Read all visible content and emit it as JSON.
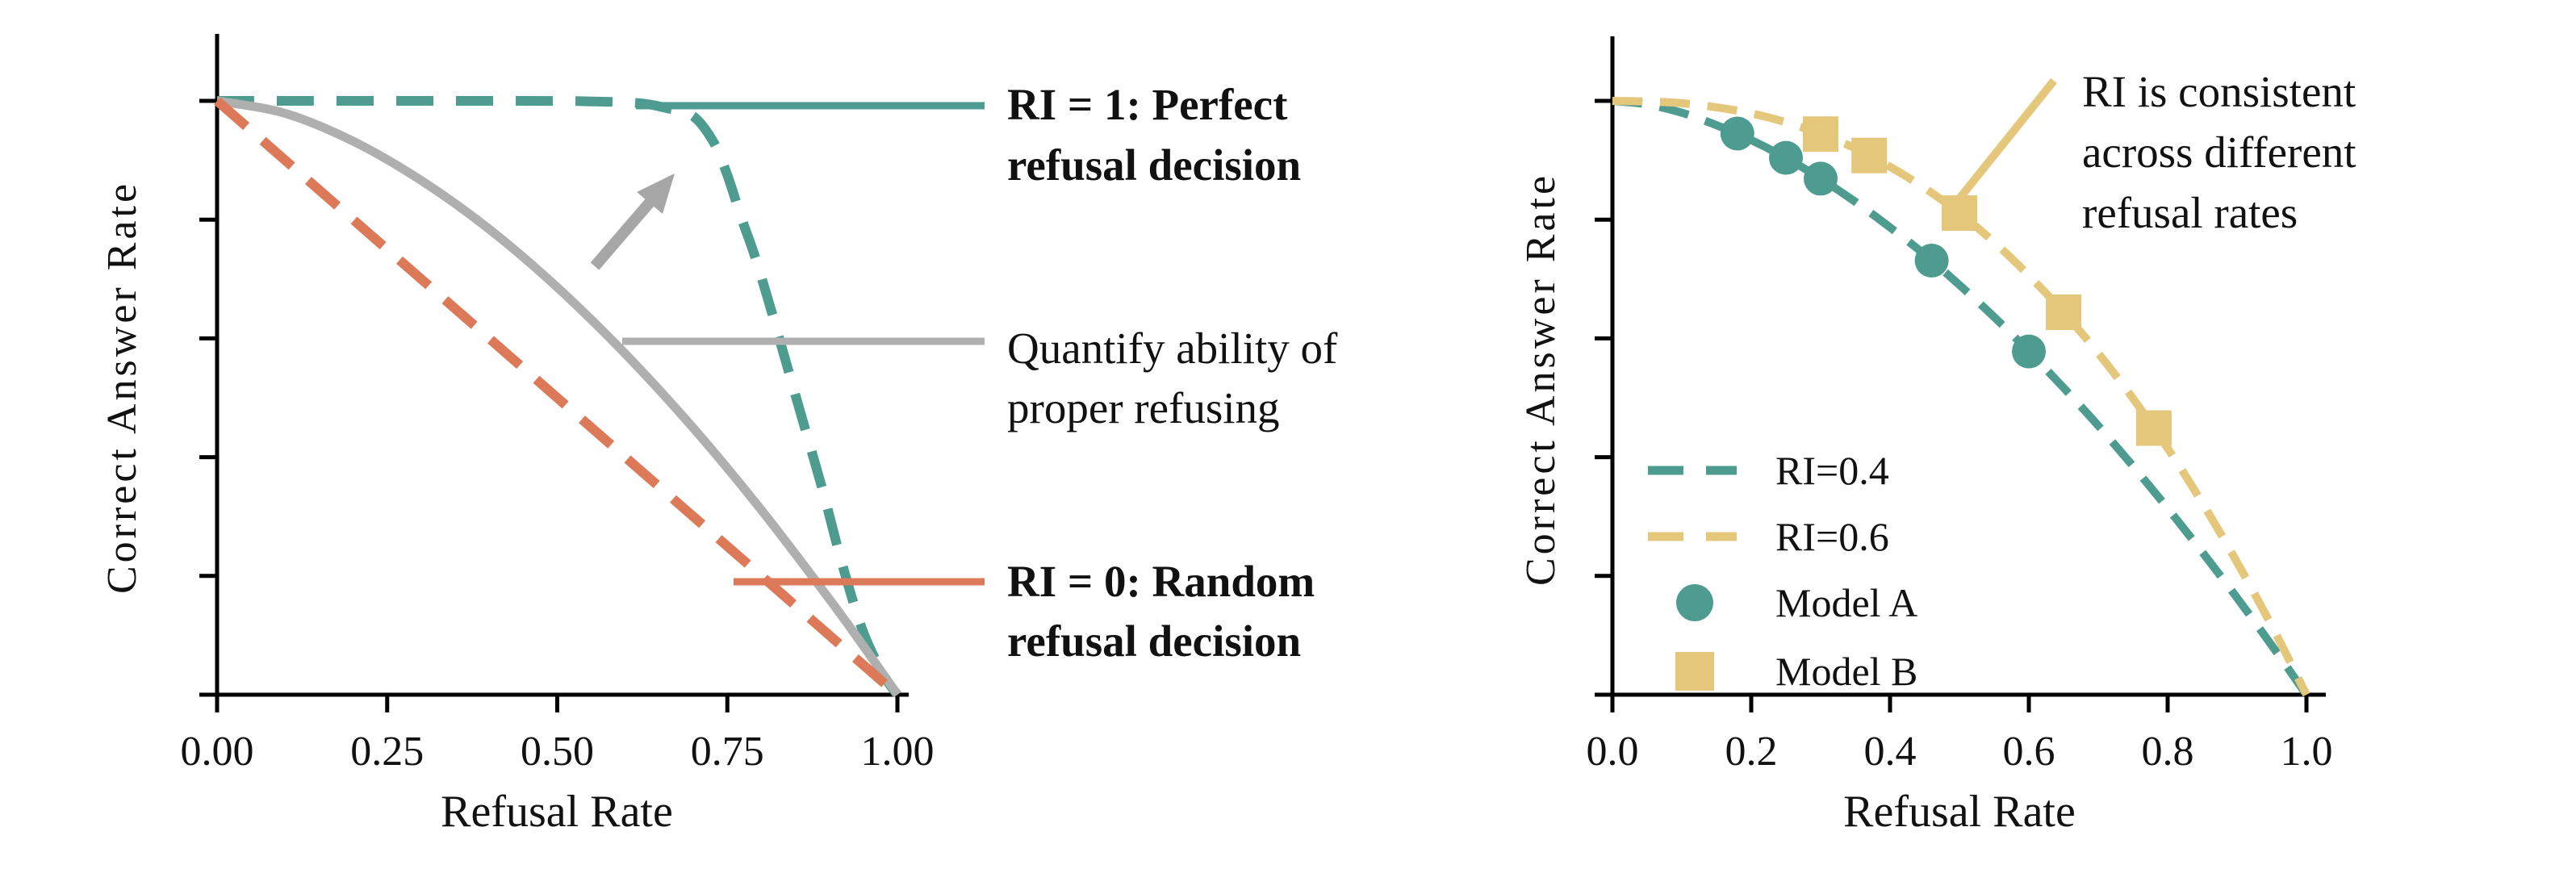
{
  "palette": {
    "teal": "#4E9C90",
    "teal_dark": "#2F6560",
    "orange": "#DB7958",
    "orange_dark": "#CC6F50",
    "yellow": "#E5C77C",
    "gray": "#AFAFAF",
    "arrow_gray": "#A6A6A6",
    "ink": "#111111",
    "axis": "#000000"
  },
  "chart_data": [
    {
      "type": "line",
      "title": "",
      "xlabel": "Refusal Rate",
      "ylabel": "Correct Answer Rate",
      "xlim": [
        0,
        1
      ],
      "ylim": [
        0,
        1
      ],
      "grid": false,
      "xticks": [
        0,
        0.25,
        0.5,
        0.75,
        1.0
      ],
      "xtick_labels": [
        "0.00",
        "0.25",
        "0.50",
        "0.75",
        "1.00"
      ],
      "yticks": [
        0,
        0.2,
        0.4,
        0.6,
        0.8,
        1.0
      ],
      "ytick_labels": [],
      "series": [
        {
          "id": "ri1",
          "color": "teal",
          "line": "dashed",
          "points": [
            [
              0,
              1
            ],
            [
              0.45,
              1
            ],
            [
              0.55,
              0.999
            ],
            [
              0.62,
              0.996
            ],
            [
              0.66,
              0.988
            ],
            [
              0.7,
              0.974
            ],
            [
              0.73,
              0.93
            ],
            [
              0.75,
              0.875
            ],
            [
              0.77,
              0.805
            ],
            [
              0.79,
              0.74
            ],
            [
              0.81,
              0.665
            ],
            [
              0.83,
              0.585
            ],
            [
              0.86,
              0.465
            ],
            [
              0.89,
              0.345
            ],
            [
              0.92,
              0.215
            ],
            [
              0.95,
              0.105
            ],
            [
              0.98,
              0.033
            ],
            [
              1,
              0
            ]
          ]
        },
        {
          "id": "model",
          "color": "gray",
          "line": "solid",
          "points": [
            [
              0,
              1
            ],
            [
              0.1,
              0.979
            ],
            [
              0.2,
              0.932
            ],
            [
              0.3,
              0.866
            ],
            [
              0.4,
              0.784
            ],
            [
              0.5,
              0.686
            ],
            [
              0.6,
              0.574
            ],
            [
              0.7,
              0.449
            ],
            [
              0.8,
              0.311
            ],
            [
              0.9,
              0.161
            ],
            [
              0.95,
              0.082
            ],
            [
              1,
              0
            ]
          ]
        },
        {
          "id": "ri0",
          "color": "orange",
          "line": "dashed",
          "points": [
            [
              0,
              1
            ],
            [
              1,
              0
            ]
          ]
        }
      ],
      "annotations": [
        {
          "lines": [
            "RI = 1: Perfect",
            "refusal decision"
          ],
          "color": "teal_dark"
        },
        {
          "lines": [
            "Quantify ability of",
            "proper refusing"
          ],
          "color": "ink"
        },
        {
          "lines": [
            "RI = 0: Random",
            "refusal decision"
          ],
          "color": "orange_dark"
        }
      ]
    },
    {
      "type": "line+scatter",
      "title": "",
      "xlabel": "Refusal Rate",
      "ylabel": "Correct Answer Rate",
      "xlim": [
        0,
        1
      ],
      "ylim": [
        0,
        1
      ],
      "grid": false,
      "xticks": [
        0,
        0.2,
        0.4,
        0.6,
        0.8,
        1.0
      ],
      "xtick_labels": [
        "0.0",
        "0.2",
        "0.4",
        "0.6",
        "0.8",
        "1.0"
      ],
      "yticks": [
        0,
        0.2,
        0.4,
        0.6,
        0.8,
        1.0
      ],
      "ytick_labels": [],
      "legend_position": "lower-left-inside",
      "series": [
        {
          "id": "ri04",
          "legend_label": "RI=0.4",
          "color": "teal",
          "line": "dashed",
          "points": [
            [
              0,
              1
            ],
            [
              0.05,
              0.994
            ],
            [
              0.1,
              0.98
            ],
            [
              0.15,
              0.959
            ],
            [
              0.2,
              0.934
            ],
            [
              0.25,
              0.904
            ],
            [
              0.3,
              0.869
            ],
            [
              0.35,
              0.83
            ],
            [
              0.4,
              0.787
            ],
            [
              0.45,
              0.741
            ],
            [
              0.5,
              0.69
            ],
            [
              0.55,
              0.636
            ],
            [
              0.6,
              0.578
            ],
            [
              0.65,
              0.517
            ],
            [
              0.7,
              0.453
            ],
            [
              0.75,
              0.385
            ],
            [
              0.8,
              0.314
            ],
            [
              0.85,
              0.24
            ],
            [
              0.9,
              0.163
            ],
            [
              0.95,
              0.083
            ],
            [
              1,
              0
            ]
          ]
        },
        {
          "id": "ri06",
          "legend_label": "RI=0.6",
          "color": "yellow",
          "line": "dashed",
          "points": [
            [
              0,
              1
            ],
            [
              0.05,
              0.999
            ],
            [
              0.1,
              0.996
            ],
            [
              0.15,
              0.989
            ],
            [
              0.2,
              0.979
            ],
            [
              0.25,
              0.964
            ],
            [
              0.3,
              0.944
            ],
            [
              0.35,
              0.92
            ],
            [
              0.4,
              0.889
            ],
            [
              0.45,
              0.853
            ],
            [
              0.5,
              0.811
            ],
            [
              0.55,
              0.762
            ],
            [
              0.6,
              0.706
            ],
            [
              0.65,
              0.644
            ],
            [
              0.7,
              0.575
            ],
            [
              0.75,
              0.499
            ],
            [
              0.8,
              0.415
            ],
            [
              0.85,
              0.323
            ],
            [
              0.9,
              0.223
            ],
            [
              0.95,
              0.116
            ],
            [
              1,
              0
            ]
          ]
        },
        {
          "id": "modelA",
          "legend_label": "Model A",
          "color": "teal",
          "marker": "circle",
          "points": [
            [
              0.18,
              0.945
            ],
            [
              0.25,
              0.904
            ],
            [
              0.3,
              0.869
            ],
            [
              0.46,
              0.731
            ],
            [
              0.6,
              0.578
            ]
          ]
        },
        {
          "id": "modelB",
          "legend_label": "Model B",
          "color": "yellow",
          "marker": "square",
          "points": [
            [
              0.3,
              0.944
            ],
            [
              0.37,
              0.908
            ],
            [
              0.5,
              0.811
            ],
            [
              0.65,
              0.644
            ],
            [
              0.78,
              0.449
            ]
          ]
        }
      ],
      "annotation": {
        "lines": [
          "RI is consistent",
          "across different",
          "refusal rates"
        ]
      }
    }
  ]
}
